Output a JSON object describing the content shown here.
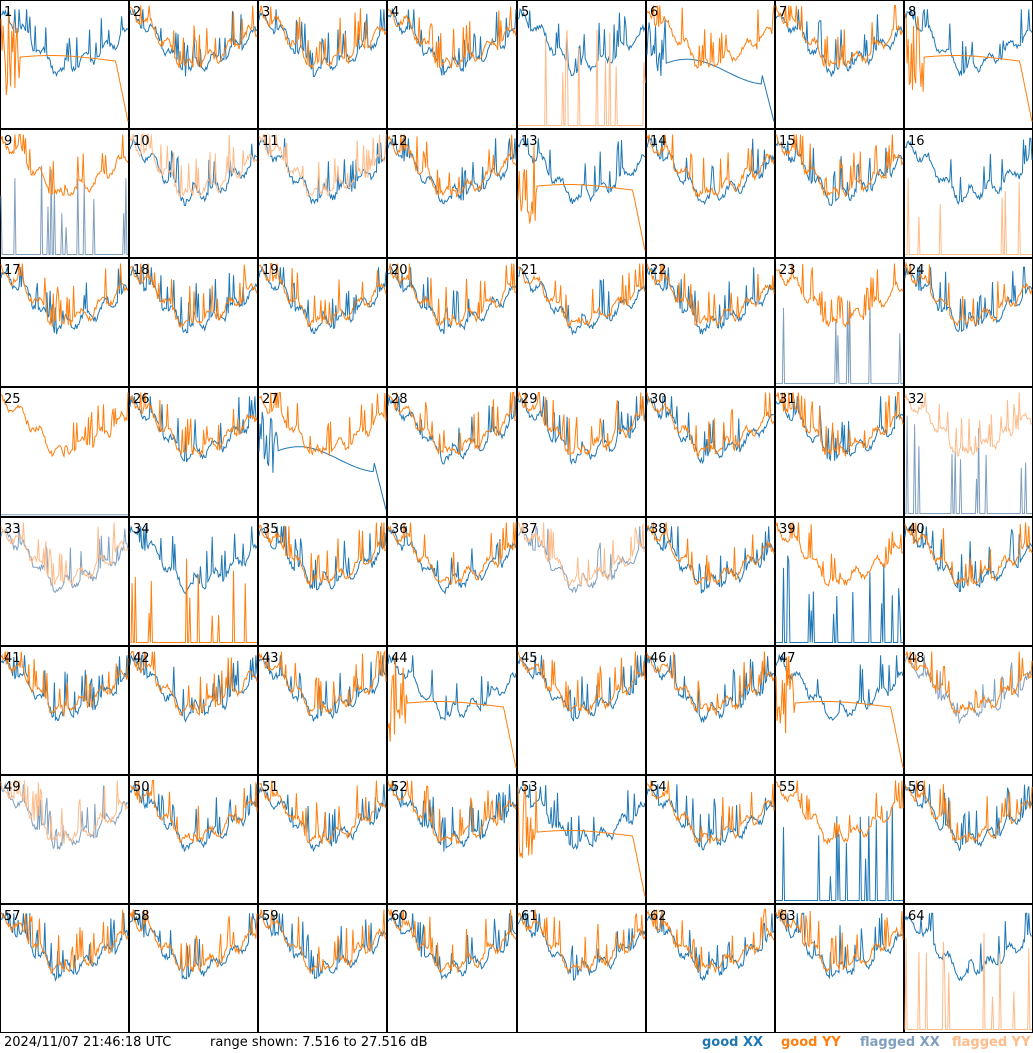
{
  "footer": {
    "timestamp": "2024/11/07 21:46:18 UTC",
    "range_text": "range shown: 7.516 to 27.516 dB"
  },
  "legend": {
    "good_xx": "good XX",
    "good_yy": "good YY",
    "flagged_xx": "flagged XX",
    "flagged_yy": "flagged YY"
  },
  "colors": {
    "good_xx": "#1f77b4",
    "good_yy": "#ff7f0e",
    "flagged_xx": "#7f9fbf",
    "flagged_yy": "#ffbb88"
  },
  "chart_data": {
    "type": "line",
    "ylim": [
      7.516,
      27.516
    ],
    "grid": {
      "rows": 8,
      "cols": 8
    },
    "panels": [
      {
        "id": "1",
        "xx": "good",
        "yy": "good",
        "shape": "rolloff_yy"
      },
      {
        "id": "2",
        "xx": "good",
        "yy": "good",
        "shape": "normal"
      },
      {
        "id": "3",
        "xx": "good",
        "yy": "good",
        "shape": "normal"
      },
      {
        "id": "4",
        "xx": "good",
        "yy": "good",
        "shape": "normal"
      },
      {
        "id": "5",
        "xx": "good",
        "yy": "flagged",
        "shape": "spikes_yy"
      },
      {
        "id": "6",
        "xx": "good",
        "yy": "good",
        "shape": "rolloff_xx"
      },
      {
        "id": "7",
        "xx": "good",
        "yy": "good",
        "shape": "normal"
      },
      {
        "id": "8",
        "xx": "good",
        "yy": "good",
        "shape": "rolloff_yy"
      },
      {
        "id": "9",
        "xx": "flagged",
        "yy": "good",
        "shape": "spikes_xx"
      },
      {
        "id": "10",
        "xx": "good",
        "yy": "flagged",
        "shape": "normal"
      },
      {
        "id": "11",
        "xx": "good",
        "yy": "flagged",
        "shape": "normal"
      },
      {
        "id": "12",
        "xx": "good",
        "yy": "good",
        "shape": "normal"
      },
      {
        "id": "13",
        "xx": "good",
        "yy": "good",
        "shape": "rolloff_yy"
      },
      {
        "id": "14",
        "xx": "good",
        "yy": "good",
        "shape": "normal"
      },
      {
        "id": "15",
        "xx": "good",
        "yy": "good",
        "shape": "normal"
      },
      {
        "id": "16",
        "xx": "good",
        "yy": "flagged",
        "shape": "spikes_yy"
      },
      {
        "id": "17",
        "xx": "good",
        "yy": "good",
        "shape": "normal"
      },
      {
        "id": "18",
        "xx": "good",
        "yy": "good",
        "shape": "normal"
      },
      {
        "id": "19",
        "xx": "good",
        "yy": "good",
        "shape": "normal"
      },
      {
        "id": "20",
        "xx": "good",
        "yy": "good",
        "shape": "normal"
      },
      {
        "id": "21",
        "xx": "good",
        "yy": "good",
        "shape": "normal"
      },
      {
        "id": "22",
        "xx": "good",
        "yy": "good",
        "shape": "normal"
      },
      {
        "id": "23",
        "xx": "flagged",
        "yy": "good",
        "shape": "spikes_xx"
      },
      {
        "id": "24",
        "xx": "good",
        "yy": "good",
        "shape": "normal"
      },
      {
        "id": "25",
        "xx": "flagged",
        "yy": "good",
        "shape": "flat_xx"
      },
      {
        "id": "26",
        "xx": "good",
        "yy": "good",
        "shape": "normal"
      },
      {
        "id": "27",
        "xx": "good",
        "yy": "good",
        "shape": "rolloff_xx"
      },
      {
        "id": "28",
        "xx": "good",
        "yy": "good",
        "shape": "normal"
      },
      {
        "id": "29",
        "xx": "good",
        "yy": "good",
        "shape": "normal"
      },
      {
        "id": "30",
        "xx": "good",
        "yy": "good",
        "shape": "normal"
      },
      {
        "id": "31",
        "xx": "good",
        "yy": "good",
        "shape": "normal"
      },
      {
        "id": "32",
        "xx": "flagged",
        "yy": "flagged",
        "shape": "spikes_xx"
      },
      {
        "id": "33",
        "xx": "flagged",
        "yy": "flagged",
        "shape": "normal"
      },
      {
        "id": "34",
        "xx": "good",
        "yy": "good",
        "shape": "spikes_yy"
      },
      {
        "id": "35",
        "xx": "good",
        "yy": "good",
        "shape": "normal"
      },
      {
        "id": "36",
        "xx": "good",
        "yy": "good",
        "shape": "normal"
      },
      {
        "id": "37",
        "xx": "flagged",
        "yy": "flagged",
        "shape": "normal"
      },
      {
        "id": "38",
        "xx": "good",
        "yy": "good",
        "shape": "normal"
      },
      {
        "id": "39",
        "xx": "good",
        "yy": "good",
        "shape": "spikes_xx"
      },
      {
        "id": "40",
        "xx": "good",
        "yy": "good",
        "shape": "normal"
      },
      {
        "id": "41",
        "xx": "good",
        "yy": "good",
        "shape": "normal"
      },
      {
        "id": "42",
        "xx": "good",
        "yy": "good",
        "shape": "normal"
      },
      {
        "id": "43",
        "xx": "good",
        "yy": "good",
        "shape": "normal"
      },
      {
        "id": "44",
        "xx": "good",
        "yy": "good",
        "shape": "rolloff_yy"
      },
      {
        "id": "45",
        "xx": "good",
        "yy": "good",
        "shape": "normal"
      },
      {
        "id": "46",
        "xx": "good",
        "yy": "good",
        "shape": "normal"
      },
      {
        "id": "47",
        "xx": "good",
        "yy": "good",
        "shape": "rolloff_yy"
      },
      {
        "id": "48",
        "xx": "flagged",
        "yy": "good",
        "shape": "normal"
      },
      {
        "id": "49",
        "xx": "flagged",
        "yy": "flagged",
        "shape": "normal"
      },
      {
        "id": "50",
        "xx": "good",
        "yy": "good",
        "shape": "normal"
      },
      {
        "id": "51",
        "xx": "good",
        "yy": "good",
        "shape": "normal"
      },
      {
        "id": "52",
        "xx": "good",
        "yy": "good",
        "shape": "normal"
      },
      {
        "id": "53",
        "xx": "good",
        "yy": "good",
        "shape": "rolloff_yy"
      },
      {
        "id": "54",
        "xx": "good",
        "yy": "good",
        "shape": "normal"
      },
      {
        "id": "55",
        "xx": "good",
        "yy": "good",
        "shape": "spikes_xx"
      },
      {
        "id": "56",
        "xx": "good",
        "yy": "good",
        "shape": "normal"
      },
      {
        "id": "57",
        "xx": "good",
        "yy": "good",
        "shape": "normal"
      },
      {
        "id": "58",
        "xx": "good",
        "yy": "good",
        "shape": "normal"
      },
      {
        "id": "59",
        "xx": "good",
        "yy": "good",
        "shape": "normal"
      },
      {
        "id": "60",
        "xx": "good",
        "yy": "good",
        "shape": "normal"
      },
      {
        "id": "61",
        "xx": "good",
        "yy": "good",
        "shape": "normal"
      },
      {
        "id": "62",
        "xx": "good",
        "yy": "good",
        "shape": "normal"
      },
      {
        "id": "63",
        "xx": "good",
        "yy": "good",
        "shape": "normal"
      },
      {
        "id": "64",
        "xx": "good",
        "yy": "flagged",
        "shape": "spikes_yy"
      }
    ]
  }
}
